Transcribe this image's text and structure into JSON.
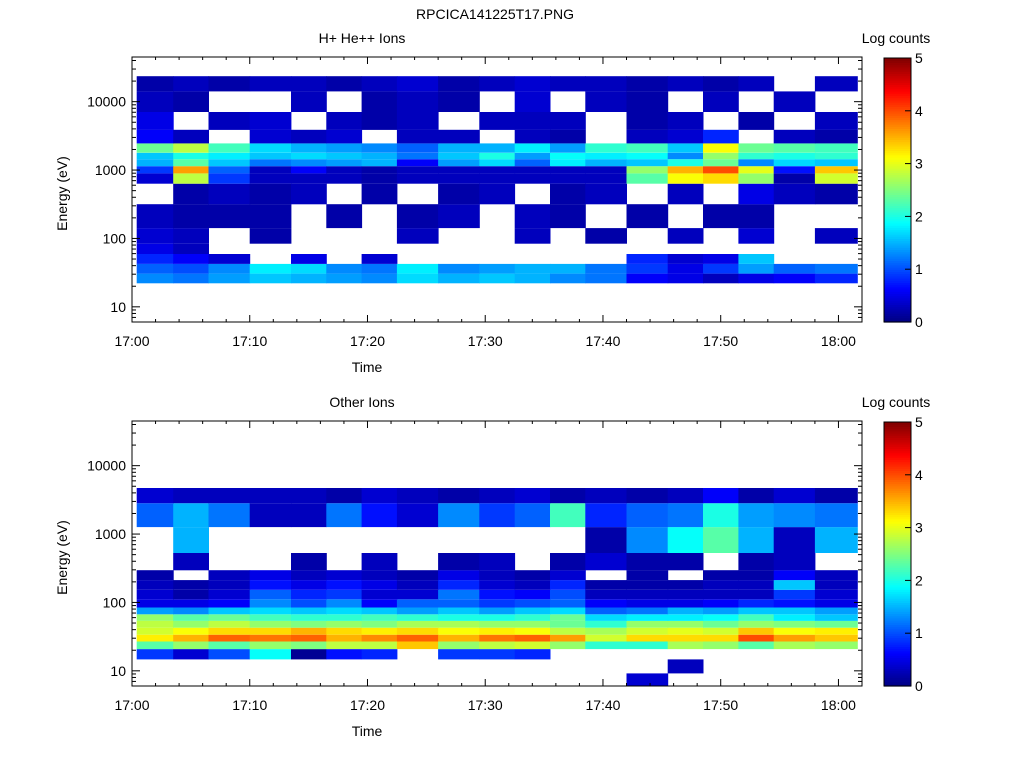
{
  "figure": {
    "title": "RPCICA141225T17.PNG"
  },
  "colorbar": {
    "label": "Log counts",
    "min": 0,
    "max": 5,
    "ticks": [
      "0",
      "1",
      "2",
      "3",
      "4",
      "5"
    ],
    "colormap": "jet"
  },
  "chart_data": [
    {
      "type": "heatmap",
      "title": "H+ He++ Ions",
      "xlabel": "Time",
      "ylabel": "Energy (eV)",
      "y_scale": "log",
      "xlim": [
        "17:00",
        "18:02"
      ],
      "ylim": [
        6,
        45000
      ],
      "x_ticks": [
        "17:00",
        "17:10",
        "17:20",
        "17:30",
        "17:40",
        "17:50",
        "18:00"
      ],
      "y_ticks": [
        "10",
        "100",
        "1000",
        "10000"
      ],
      "time_bins": [
        "17:02",
        "17:05",
        "17:08",
        "17:12",
        "17:15",
        "17:18",
        "17:21",
        "17:24",
        "17:28",
        "17:31",
        "17:34",
        "17:37",
        "17:40",
        "17:44",
        "17:47",
        "17:50",
        "17:53",
        "17:56",
        "18:00"
      ],
      "energy_bins_eV": [
        26,
        36,
        50,
        70,
        100,
        200,
        500,
        800,
        1000,
        1300,
        1600,
        2000,
        3000,
        5000,
        10000,
        20000
      ],
      "log_counts": [
        [
          1.3,
          1.2,
          1.4,
          1.6,
          1.5,
          1.4,
          1.3,
          1.7,
          1.5,
          1.6,
          1.5,
          1.3,
          1.2,
          0.6,
          0.5,
          0.3,
          0.5,
          0.6,
          0.8
        ],
        [
          1.1,
          1.0,
          1.3,
          1.8,
          1.7,
          1.3,
          1.2,
          1.8,
          1.3,
          1.4,
          1.5,
          1.5,
          1.2,
          0.9,
          0.5,
          0.9,
          1.4,
          1.1,
          1.2
        ],
        [
          0.8,
          0.6,
          0.4,
          0,
          0.5,
          0,
          0.4,
          0,
          0,
          0,
          0,
          0,
          0,
          0.8,
          0.4,
          0.5,
          1.6,
          0,
          0
        ],
        [
          0.5,
          0.3,
          0,
          0,
          0,
          0,
          0,
          0,
          0,
          0,
          0,
          0,
          0,
          0,
          0,
          0,
          0,
          0,
          0
        ],
        [
          0.4,
          0.3,
          0,
          0.2,
          0,
          0,
          0,
          0.3,
          0,
          0,
          0.3,
          0,
          0.2,
          0,
          0.3,
          0,
          0.4,
          0,
          0.3
        ],
        [
          0.3,
          0.2,
          0.2,
          0.2,
          0,
          0.2,
          0,
          0.2,
          0.3,
          0,
          0.3,
          0.2,
          0,
          0.2,
          0,
          0.2,
          0.2,
          0,
          0
        ],
        [
          0,
          0.2,
          0.3,
          0.2,
          0.3,
          0,
          0.2,
          0,
          0.2,
          0.3,
          0,
          0.2,
          0.3,
          0,
          0.3,
          0,
          0.5,
          0.3,
          0.2
        ],
        [
          0.4,
          2.8,
          0.9,
          0.3,
          0.3,
          0.3,
          0.2,
          0.3,
          0.3,
          0.3,
          0.3,
          0.3,
          0.3,
          2.3,
          3.1,
          3.3,
          2.6,
          0.2,
          2.9
        ],
        [
          0.9,
          3.6,
          1.1,
          0.3,
          0.6,
          0.3,
          0.2,
          0.3,
          0.3,
          0.3,
          0.3,
          0.3,
          0.3,
          2.6,
          3.5,
          4.0,
          3.0,
          0.7,
          3.4
        ],
        [
          1.5,
          2.3,
          1.6,
          1.2,
          1.3,
          1.4,
          1.5,
          0.6,
          1.4,
          1.7,
          1.1,
          1.8,
          1.5,
          1.6,
          2.0,
          2.4,
          1.3,
          1.7,
          1.6
        ],
        [
          1.6,
          2.0,
          1.8,
          1.6,
          1.7,
          1.6,
          1.5,
          1.2,
          1.6,
          2.0,
          1.4,
          1.9,
          1.8,
          1.9,
          1.3,
          2.6,
          2.1,
          2.0,
          2.1
        ],
        [
          2.4,
          2.8,
          2.2,
          1.7,
          1.5,
          1.4,
          1.3,
          1.1,
          1.5,
          1.5,
          1.8,
          1.4,
          2.1,
          2.2,
          1.6,
          3.1,
          2.4,
          2.3,
          2.2
        ],
        [
          0.6,
          0.3,
          0,
          0.4,
          0.3,
          0.4,
          0,
          0.3,
          0.3,
          0,
          0.3,
          0.2,
          0,
          0.3,
          0.4,
          0.8,
          0,
          0.3,
          0.2
        ],
        [
          0.5,
          0,
          0.3,
          0.4,
          0,
          0.3,
          0.2,
          0.3,
          0,
          0.3,
          0.3,
          0.3,
          0,
          0.2,
          0.3,
          0,
          0.2,
          0,
          0.3
        ],
        [
          0.3,
          0.2,
          0,
          0,
          0.3,
          0,
          0.2,
          0.3,
          0.2,
          0,
          0.4,
          0,
          0.3,
          0.2,
          0,
          0.3,
          0,
          0.3,
          0
        ],
        [
          0.2,
          0.3,
          0.2,
          0.3,
          0.3,
          0.2,
          0.3,
          0.4,
          0.2,
          0.3,
          0.4,
          0.3,
          0.3,
          0.2,
          0.3,
          0.2,
          0.3,
          0,
          0.3
        ]
      ]
    },
    {
      "type": "heatmap",
      "title": "Other Ions",
      "xlabel": "Time",
      "ylabel": "Energy (eV)",
      "y_scale": "log",
      "xlim": [
        "17:00",
        "18:02"
      ],
      "ylim": [
        6,
        45000
      ],
      "x_ticks": [
        "17:00",
        "17:10",
        "17:20",
        "17:30",
        "17:40",
        "17:50",
        "18:00"
      ],
      "y_ticks": [
        "10",
        "100",
        "1000",
        "10000"
      ],
      "time_bins": [
        "17:02",
        "17:05",
        "17:08",
        "17:12",
        "17:15",
        "17:18",
        "17:21",
        "17:24",
        "17:28",
        "17:31",
        "17:34",
        "17:37",
        "17:40",
        "17:44",
        "17:47",
        "17:50",
        "17:53",
        "17:56",
        "18:00"
      ],
      "energy_bins_eV": [
        7,
        12,
        18,
        24,
        30,
        38,
        48,
        60,
        75,
        95,
        130,
        180,
        250,
        350,
        800,
        2000,
        4000
      ],
      "log_counts": [
        [
          0,
          0,
          0,
          0,
          0,
          0,
          0,
          0,
          0,
          0,
          0,
          0,
          0,
          0.4,
          0,
          0,
          0,
          0,
          0
        ],
        [
          0,
          0,
          0,
          0,
          0,
          0,
          0,
          0,
          0,
          0,
          0,
          0,
          0,
          0,
          0.3,
          0,
          0,
          0,
          0
        ],
        [
          0.9,
          0.4,
          1.0,
          1.9,
          0.1,
          0.7,
          0.8,
          0,
          0.9,
          0.9,
          0.8,
          0,
          0,
          0,
          0,
          0,
          0,
          0,
          0
        ],
        [
          2.3,
          2.6,
          2.3,
          2.6,
          2.5,
          2.8,
          2.8,
          3.4,
          2.6,
          2.8,
          2.9,
          2.6,
          2.1,
          2.1,
          2.7,
          2.6,
          2.3,
          2.7,
          2.6
        ],
        [
          3.2,
          3.5,
          3.9,
          3.8,
          3.9,
          3.5,
          3.7,
          3.9,
          3.5,
          3.8,
          3.9,
          3.6,
          2.9,
          3.3,
          3.3,
          3.3,
          4.0,
          3.6,
          3.4
        ],
        [
          2.9,
          3.1,
          3.3,
          3.3,
          3.5,
          3.3,
          3.2,
          3.3,
          3.1,
          3.2,
          3.1,
          2.8,
          2.7,
          2.9,
          3.0,
          2.9,
          3.4,
          3.1,
          3.2
        ],
        [
          2.8,
          2.6,
          2.8,
          2.6,
          2.5,
          2.6,
          2.5,
          2.7,
          2.7,
          2.6,
          2.6,
          2.4,
          2.1,
          2.6,
          2.6,
          2.4,
          2.6,
          2.5,
          2.4
        ],
        [
          2.6,
          2.3,
          2.4,
          2.2,
          2.1,
          2.1,
          2.2,
          2.1,
          2.0,
          2.0,
          2.1,
          2.4,
          1.7,
          1.8,
          1.8,
          1.9,
          2.2,
          1.8,
          1.6
        ],
        [
          1.4,
          1.3,
          1.6,
          1.7,
          1.6,
          1.7,
          1.6,
          1.4,
          1.6,
          1.4,
          1.6,
          1.7,
          1.1,
          1.2,
          1.5,
          1.4,
          1.6,
          1.6,
          1.4
        ],
        [
          0.5,
          0.5,
          0.6,
          1.3,
          1.0,
          1.3,
          0.6,
          1.1,
          1.1,
          0.9,
          1.0,
          1.1,
          0.6,
          0.5,
          0.5,
          0.6,
          0.8,
          0.7,
          0.5
        ],
        [
          0.4,
          0.2,
          0.4,
          1.1,
          0.8,
          0.9,
          0.4,
          0.4,
          1.2,
          0.7,
          0.6,
          1.0,
          0.3,
          0.3,
          0.3,
          0.3,
          0.3,
          0.9,
          0.4
        ],
        [
          0.3,
          0.2,
          0.3,
          0.7,
          0.5,
          0.7,
          0.5,
          0.3,
          0.8,
          0.4,
          0.3,
          0.8,
          0.2,
          0.2,
          0.2,
          0.3,
          0.3,
          1.6,
          0.3
        ],
        [
          0.2,
          0,
          0.3,
          0.5,
          0.3,
          0.4,
          0.3,
          0.2,
          0.5,
          0.3,
          0.2,
          0.4,
          0,
          0.2,
          0,
          0.2,
          0.2,
          0.6,
          0.3
        ],
        [
          0,
          0.3,
          0,
          0,
          0.2,
          0,
          0.3,
          0,
          0.2,
          0.3,
          0,
          0.2,
          0.4,
          0.2,
          0.2,
          0,
          0.2,
          0.3,
          0
        ],
        [
          0,
          1.5,
          0,
          0,
          0,
          0,
          0,
          0,
          0,
          0,
          0,
          0,
          0.2,
          1.3,
          1.9,
          2.3,
          1.5,
          0.3,
          1.5
        ],
        [
          1.1,
          1.5,
          1.2,
          0.3,
          0.3,
          1.2,
          0.7,
          0.4,
          1.3,
          0.9,
          1.1,
          2.2,
          0.8,
          1.1,
          1.2,
          2.0,
          1.4,
          1.3,
          1.2
        ],
        [
          0.4,
          0.3,
          0.3,
          0.3,
          0.3,
          0.2,
          0.4,
          0.3,
          0.2,
          0.3,
          0.4,
          0.2,
          0.3,
          0.2,
          0.3,
          0.6,
          0.2,
          0.4,
          0.2
        ]
      ]
    }
  ]
}
